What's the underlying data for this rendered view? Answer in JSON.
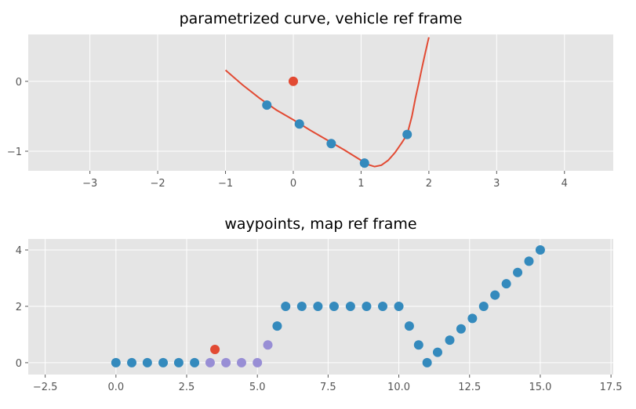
{
  "colors": {
    "background": "#E5E5E5",
    "grid": "#FFFFFF",
    "blue": "#348ABD",
    "red": "#E24A33",
    "purple": "#988ED5"
  },
  "chart_data": [
    {
      "type": "scatter",
      "title": "parametrized curve, vehicle ref frame",
      "xlim": [
        -3.91,
        4.72
      ],
      "ylim": [
        -1.28,
        0.67
      ],
      "xticks": [
        -3,
        -2,
        -1,
        0,
        1,
        2,
        3,
        4
      ],
      "xtick_labels": [
        "−3",
        "−2",
        "−1",
        "0",
        "1",
        "2",
        "3",
        "4"
      ],
      "yticks": [
        -1,
        0
      ],
      "ytick_labels": [
        "−1",
        "0"
      ],
      "grid": true,
      "series": [
        {
          "type": "line",
          "color": "#E24A33",
          "x": [
            -1,
            -0.75,
            -0.5,
            -0.25,
            0,
            0.25,
            0.5,
            0.75,
            1,
            1.1,
            1.2,
            1.3,
            1.4,
            1.5,
            1.6,
            1.68,
            1.75,
            1.8,
            1.85,
            1.9,
            1.95,
            2
          ],
          "y": [
            0.16,
            -0.05,
            -0.24,
            -0.41,
            -0.55,
            -0.7,
            -0.84,
            -0.98,
            -1.13,
            -1.19,
            -1.22,
            -1.2,
            -1.13,
            -1.02,
            -0.88,
            -0.76,
            -0.5,
            -0.25,
            -0.03,
            0.2,
            0.42,
            0.63
          ]
        },
        {
          "type": "scatter",
          "color": "#348ABD",
          "x": [
            -0.39,
            0.09,
            0.56,
            1.05,
            1.68
          ],
          "y": [
            -0.34,
            -0.61,
            -0.89,
            -1.17,
            -0.76
          ]
        },
        {
          "type": "scatter",
          "color": "#E24A33",
          "x": [
            0
          ],
          "y": [
            0
          ]
        }
      ]
    },
    {
      "type": "scatter",
      "title": "waypoints, map ref frame",
      "xlim": [
        -3.1,
        17.58
      ],
      "ylim": [
        -0.42,
        4.39
      ],
      "xticks": [
        -2.5,
        0,
        2.5,
        5,
        7.5,
        10,
        12.5,
        15,
        17.5
      ],
      "xtick_labels": [
        "−2.5",
        "0.0",
        "2.5",
        "5.0",
        "7.5",
        "10.0",
        "12.5",
        "15.0",
        "17.5"
      ],
      "yticks": [
        0,
        2,
        4
      ],
      "ytick_labels": [
        "0",
        "2",
        "4"
      ],
      "grid": true,
      "series": [
        {
          "type": "scatter",
          "color": "#348ABD",
          "x": [
            0,
            0.56,
            1.11,
            1.67,
            2.22,
            2.78,
            5.7,
            6,
            6.57,
            7.14,
            7.71,
            8.29,
            8.86,
            9.43,
            10,
            10.37,
            10.7,
            11,
            11.37,
            11.8,
            12.2,
            12.6,
            13,
            13.4,
            13.8,
            14.2,
            14.6,
            15
          ],
          "y": [
            0,
            0,
            0,
            0,
            0,
            0,
            1.3,
            2,
            2,
            2,
            2,
            2,
            2,
            2,
            2,
            1.3,
            0.63,
            0,
            0.37,
            0.8,
            1.2,
            1.57,
            2,
            2.4,
            2.8,
            3.2,
            3.6,
            4
          ]
        },
        {
          "type": "scatter",
          "color": "#988ED5",
          "x": [
            3.33,
            3.89,
            4.44,
            5.0,
            5.37
          ],
          "y": [
            0,
            0,
            0,
            0,
            0.63
          ]
        },
        {
          "type": "scatter",
          "color": "#E24A33",
          "x": [
            3.5
          ],
          "y": [
            0.47
          ]
        }
      ]
    }
  ]
}
